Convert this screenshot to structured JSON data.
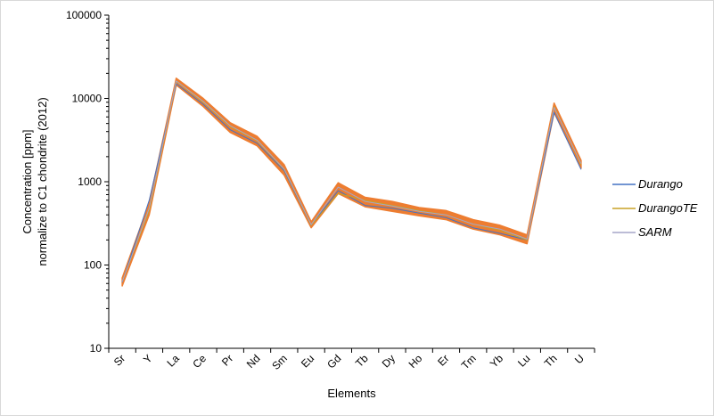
{
  "chart_data": {
    "type": "line",
    "title": "",
    "xlabel": "Elements",
    "ylabel": [
      "Concentration [ppm]",
      "normalize to C1 chondrite (2012)"
    ],
    "yscale": "log",
    "ylim": [
      10,
      100000
    ],
    "y_ticks": [
      {
        "value": 10,
        "label": "10"
      },
      {
        "value": 100,
        "label": "100"
      },
      {
        "value": 1000,
        "label": "1000"
      },
      {
        "value": 10000,
        "label": "10000"
      },
      {
        "value": 100000,
        "label": "100000"
      }
    ],
    "categories": [
      "Sr",
      "Y",
      "La",
      "Ce",
      "Pr",
      "Nd",
      "Sm",
      "Eu",
      "Gd",
      "Tb",
      "Dy",
      "Ho",
      "Er",
      "Tm",
      "Yb",
      "Lu",
      "Th",
      "U"
    ],
    "grid": false,
    "legend_position": "right",
    "series": [
      {
        "name": "Durango",
        "color": "#4472C4",
        "values": [
          62,
          600,
          15000,
          8500,
          4200,
          2900,
          1350,
          300,
          780,
          520,
          480,
          420,
          370,
          280,
          240,
          200,
          6800,
          1400
        ]
      },
      {
        "name": "DurangoTE",
        "color": "#C9A227",
        "values": [
          63,
          450,
          16000,
          9000,
          4600,
          3100,
          1400,
          300,
          720,
          600,
          520,
          450,
          400,
          310,
          260,
          200,
          8000,
          1600
        ]
      },
      {
        "name": "SARM",
        "color": "#A5A5C8",
        "values": [
          63,
          480,
          16200,
          9200,
          4700,
          3150,
          1420,
          305,
          860,
          580,
          510,
          440,
          400,
          310,
          270,
          205,
          7800,
          1650
        ]
      }
    ],
    "band": {
      "color": "#ED7D31",
      "low": [
        56,
        400,
        14500,
        8000,
        3900,
        2700,
        1200,
        280,
        720,
        500,
        440,
        390,
        350,
        270,
        230,
        180,
        6800,
        1450
      ],
      "high": [
        70,
        560,
        17500,
        10000,
        5100,
        3500,
        1600,
        330,
        970,
        650,
        580,
        490,
        450,
        350,
        300,
        230,
        8800,
        1800
      ]
    }
  }
}
